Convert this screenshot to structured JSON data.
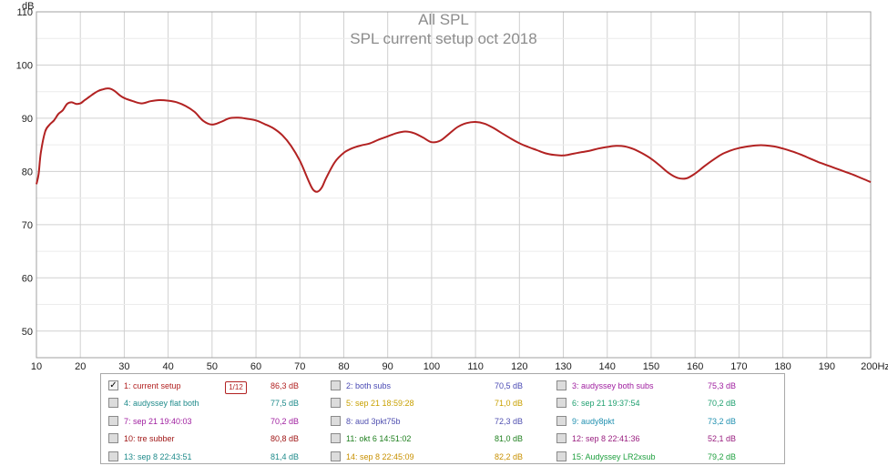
{
  "chart_data": {
    "type": "line",
    "title": "All SPL",
    "subtitle": "SPL current setup oct 2018",
    "ylabel": "dB",
    "xunit": "Hz",
    "xlim": [
      10,
      200
    ],
    "ylim": [
      45,
      110
    ],
    "x_ticks": [
      "10",
      "20",
      "30",
      "40",
      "50",
      "60",
      "70",
      "80",
      "90",
      "100",
      "110",
      "120",
      "130",
      "140",
      "150",
      "160",
      "170",
      "180",
      "190",
      "200Hz"
    ],
    "y_ticks": [
      "50",
      "60",
      "70",
      "80",
      "90",
      "100",
      "110"
    ],
    "grid": true,
    "series": [
      {
        "name": "1: current setup",
        "color": "#b22222",
        "x": [
          10,
          10.5,
          11,
          12,
          13,
          14,
          15,
          16,
          17,
          18,
          19,
          20,
          21,
          22,
          23,
          24,
          25,
          26,
          27,
          28,
          29,
          30,
          32,
          34,
          36,
          38,
          40,
          42,
          44,
          46,
          48,
          50,
          52,
          54,
          56,
          58,
          60,
          62,
          64,
          66,
          68,
          70,
          72,
          73,
          74,
          75,
          76,
          78,
          80,
          82,
          84,
          86,
          88,
          90,
          92,
          94,
          96,
          98,
          100,
          102,
          104,
          106,
          108,
          110,
          112,
          114,
          116,
          118,
          120,
          122,
          124,
          126,
          128,
          130,
          132,
          134,
          136,
          138,
          140,
          142,
          144,
          146,
          148,
          150,
          152,
          154,
          156,
          158,
          160,
          162,
          164,
          166,
          168,
          170,
          172,
          174,
          176,
          178,
          180,
          182,
          184,
          186,
          188,
          190,
          192,
          194,
          196,
          198,
          200
        ],
        "values": [
          77.6,
          79.5,
          83.5,
          87.5,
          88.8,
          89.6,
          90.8,
          91.5,
          92.7,
          93.0,
          92.7,
          92.8,
          93.4,
          94.0,
          94.6,
          95.1,
          95.4,
          95.6,
          95.5,
          95.0,
          94.3,
          93.8,
          93.2,
          92.8,
          93.2,
          93.4,
          93.3,
          93.0,
          92.3,
          91.2,
          89.5,
          88.8,
          89.3,
          90.0,
          90.1,
          89.9,
          89.6,
          88.9,
          88.1,
          86.8,
          84.8,
          82.0,
          78.2,
          76.6,
          76.2,
          77.0,
          78.8,
          81.8,
          83.5,
          84.4,
          84.9,
          85.3,
          86.0,
          86.6,
          87.2,
          87.5,
          87.2,
          86.4,
          85.5,
          85.8,
          87.1,
          88.4,
          89.1,
          89.3,
          89.0,
          88.2,
          87.2,
          86.2,
          85.3,
          84.6,
          84.0,
          83.4,
          83.1,
          83.0,
          83.3,
          83.6,
          83.9,
          84.3,
          84.6,
          84.8,
          84.7,
          84.2,
          83.4,
          82.4,
          81.1,
          79.7,
          78.8,
          78.7,
          79.6,
          80.9,
          82.1,
          83.2,
          83.9,
          84.4,
          84.7,
          84.9,
          84.9,
          84.7,
          84.3,
          83.8,
          83.2,
          82.5,
          81.8,
          81.2,
          80.6,
          80.0,
          79.4,
          78.7,
          78.0
        ]
      }
    ]
  },
  "legend": {
    "items": [
      {
        "label": "1: current setup",
        "value": "86,3 dB",
        "color": "#b22222",
        "checked": true,
        "check": "✓"
      },
      {
        "label": "2: both subs",
        "value": "70,5 dB",
        "color": "#4a4ab4",
        "checked": false,
        "check": ""
      },
      {
        "label": "3: audyssey both subs",
        "value": "75,3 dB",
        "color": "#a020a0",
        "checked": false,
        "check": ""
      },
      {
        "label": "4: audyssey flat both",
        "value": "77,5 dB",
        "color": "#1f8b8b",
        "checked": false,
        "check": ""
      },
      {
        "label": "5: sep 21 18:59:28",
        "value": "71,0 dB",
        "color": "#c8a000",
        "checked": false,
        "check": ""
      },
      {
        "label": "6: sep 21 19:37:54",
        "value": "70,2 dB",
        "color": "#20a070",
        "checked": false,
        "check": ""
      },
      {
        "label": "7: sep 21 19:40:03",
        "value": "70,2 dB",
        "color": "#a020a0",
        "checked": false,
        "check": ""
      },
      {
        "label": "8: aud 3pkt75b",
        "value": "72,3 dB",
        "color": "#5050b0",
        "checked": false,
        "check": ""
      },
      {
        "label": "9: audy8pkt",
        "value": "73,2 dB",
        "color": "#2090b0",
        "checked": false,
        "check": ""
      },
      {
        "label": "10: tre subber",
        "value": "80,8 dB",
        "color": "#a01818",
        "checked": false,
        "check": ""
      },
      {
        "label": "11: okt 6 14:51:02",
        "value": "81,0 dB",
        "color": "#208020",
        "checked": false,
        "check": ""
      },
      {
        "label": "12: sep 8 22:41:36",
        "value": "52,1 dB",
        "color": "#9a2080",
        "checked": false,
        "check": ""
      },
      {
        "label": "13: sep 8 22:43:51",
        "value": "81,4 dB",
        "color": "#1f8b8b",
        "checked": false,
        "check": ""
      },
      {
        "label": "14: sep 8 22:45:09",
        "value": "82,2 dB",
        "color": "#c89000",
        "checked": false,
        "check": ""
      },
      {
        "label": "15: Audyssey LR2xsub",
        "value": "79,2 dB",
        "color": "#20a040",
        "checked": false,
        "check": ""
      }
    ],
    "smoothing": "1/12"
  }
}
